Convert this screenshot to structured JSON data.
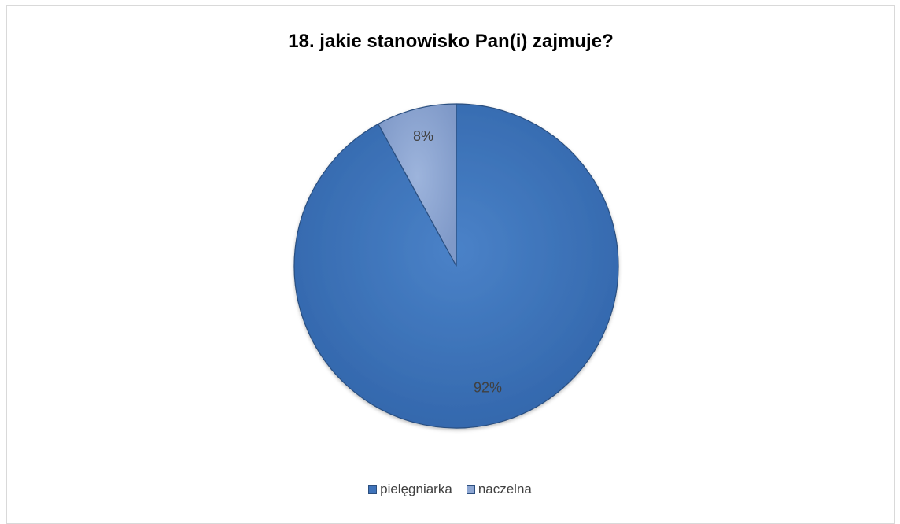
{
  "chart_data": {
    "type": "pie",
    "title": "18. jakie stanowisko Pan(i) zajmuje?",
    "categories": [
      "pielęgniarka",
      "naczelna"
    ],
    "values": [
      92,
      8
    ],
    "data_labels": [
      "92%",
      "8%"
    ],
    "colors": [
      "#3F73BA",
      "#8EA7D3"
    ],
    "legend_position": "bottom"
  }
}
